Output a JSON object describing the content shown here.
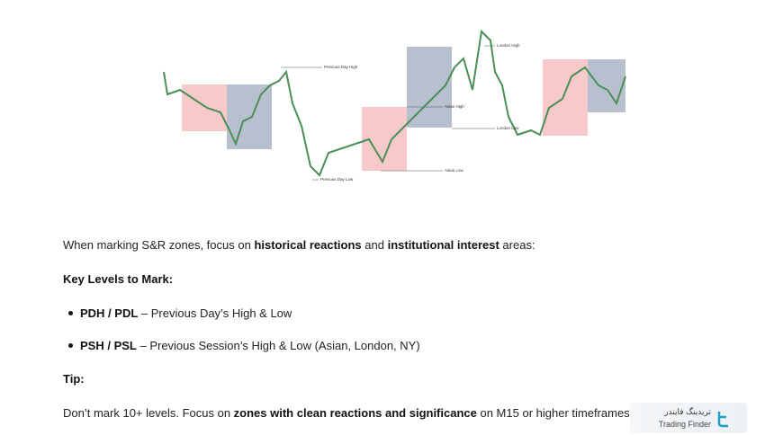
{
  "chart_image": {
    "labels": [
      "Previous Day High",
      "London High",
      "Asian High",
      "London Low",
      "Asian Low",
      "Previous Day Low"
    ]
  },
  "intro": [
    "When marking S&R zones, focus on ",
    "historical reactions",
    " and ",
    "institutional interest",
    " areas:"
  ],
  "heading1": "Key Levels to Mark:",
  "bullets": [
    [
      "PDH / PDL",
      " – Previous Day’s High & Low"
    ],
    [
      "PSH / PSL",
      " – Previous Session’s High & Low (Asian, London, NY)"
    ]
  ],
  "heading2": "Tip:",
  "tip": [
    "Don’t mark 10+ levels. Focus on ",
    "zones with clean reactions and significance",
    " on M15 or higher timeframes."
  ],
  "logo": {
    "persian": "تریدینگ فایندر",
    "english": "Trading Finder"
  }
}
